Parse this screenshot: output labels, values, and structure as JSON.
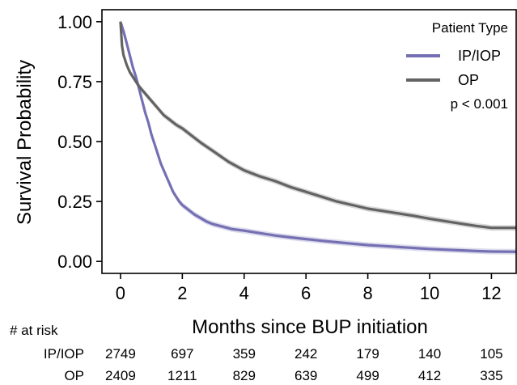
{
  "chart_data": {
    "type": "line",
    "subtype": "kaplan-meier",
    "title": "",
    "xlabel": "Months since BUP initiation",
    "ylabel": "Survival Probability",
    "xlim": [
      -0.6,
      12.8
    ],
    "ylim": [
      -0.05,
      1.05
    ],
    "x_ticks": [
      0,
      2,
      4,
      6,
      8,
      10,
      12
    ],
    "y_ticks": [
      "0.00",
      "0.25",
      "0.50",
      "0.75",
      "1.00"
    ],
    "legend": {
      "title": "Patient Type",
      "placement": "top-right"
    },
    "annotation": "p < 0.001",
    "confidence_band": true,
    "series": [
      {
        "name": "IP/IOP",
        "color": "#7570b3",
        "x": [
          0,
          0.1,
          0.2,
          0.3,
          0.4,
          0.5,
          0.6,
          0.7,
          0.8,
          0.9,
          1.0,
          1.1,
          1.2,
          1.3,
          1.4,
          1.5,
          1.6,
          1.7,
          1.8,
          1.9,
          2.0,
          2.2,
          2.4,
          2.6,
          2.8,
          3.0,
          3.3,
          3.6,
          4.0,
          4.5,
          5.0,
          5.5,
          6.0,
          6.5,
          7.0,
          7.5,
          8.0,
          8.5,
          9.0,
          9.5,
          10.0,
          10.5,
          11.0,
          11.5,
          12.0,
          12.8
        ],
        "values": [
          1.0,
          0.96,
          0.91,
          0.86,
          0.81,
          0.77,
          0.72,
          0.67,
          0.62,
          0.58,
          0.53,
          0.49,
          0.45,
          0.41,
          0.38,
          0.35,
          0.32,
          0.29,
          0.27,
          0.25,
          0.235,
          0.215,
          0.195,
          0.18,
          0.165,
          0.155,
          0.145,
          0.135,
          0.128,
          0.118,
          0.108,
          0.1,
          0.093,
          0.086,
          0.08,
          0.074,
          0.068,
          0.064,
          0.06,
          0.056,
          0.052,
          0.049,
          0.046,
          0.043,
          0.041,
          0.04
        ]
      },
      {
        "name": "OP",
        "color": "#636363",
        "x": [
          0,
          0.05,
          0.1,
          0.2,
          0.3,
          0.4,
          0.5,
          0.6,
          0.7,
          0.8,
          0.9,
          1.0,
          1.2,
          1.4,
          1.6,
          1.8,
          2.0,
          2.3,
          2.6,
          3.0,
          3.5,
          4.0,
          4.5,
          5.0,
          5.5,
          6.0,
          6.5,
          7.0,
          7.5,
          8.0,
          8.5,
          9.0,
          9.5,
          10.0,
          10.5,
          11.0,
          11.5,
          12.0,
          12.8
        ],
        "values": [
          1.0,
          0.9,
          0.86,
          0.82,
          0.79,
          0.77,
          0.75,
          0.73,
          0.715,
          0.7,
          0.685,
          0.67,
          0.64,
          0.61,
          0.59,
          0.57,
          0.555,
          0.525,
          0.495,
          0.46,
          0.415,
          0.38,
          0.355,
          0.335,
          0.31,
          0.29,
          0.27,
          0.25,
          0.235,
          0.22,
          0.21,
          0.2,
          0.19,
          0.178,
          0.168,
          0.158,
          0.148,
          0.14,
          0.14
        ]
      }
    ],
    "risk_table": {
      "header": "# at risk",
      "times": [
        0,
        2,
        4,
        6,
        8,
        10,
        12
      ],
      "rows": [
        {
          "label": "IP/IOP",
          "counts": [
            "2749",
            "697",
            "359",
            "242",
            "179",
            "140",
            "105"
          ]
        },
        {
          "label": "OP",
          "counts": [
            "2409",
            "1211",
            "829",
            "639",
            "499",
            "412",
            "335"
          ]
        }
      ]
    }
  }
}
